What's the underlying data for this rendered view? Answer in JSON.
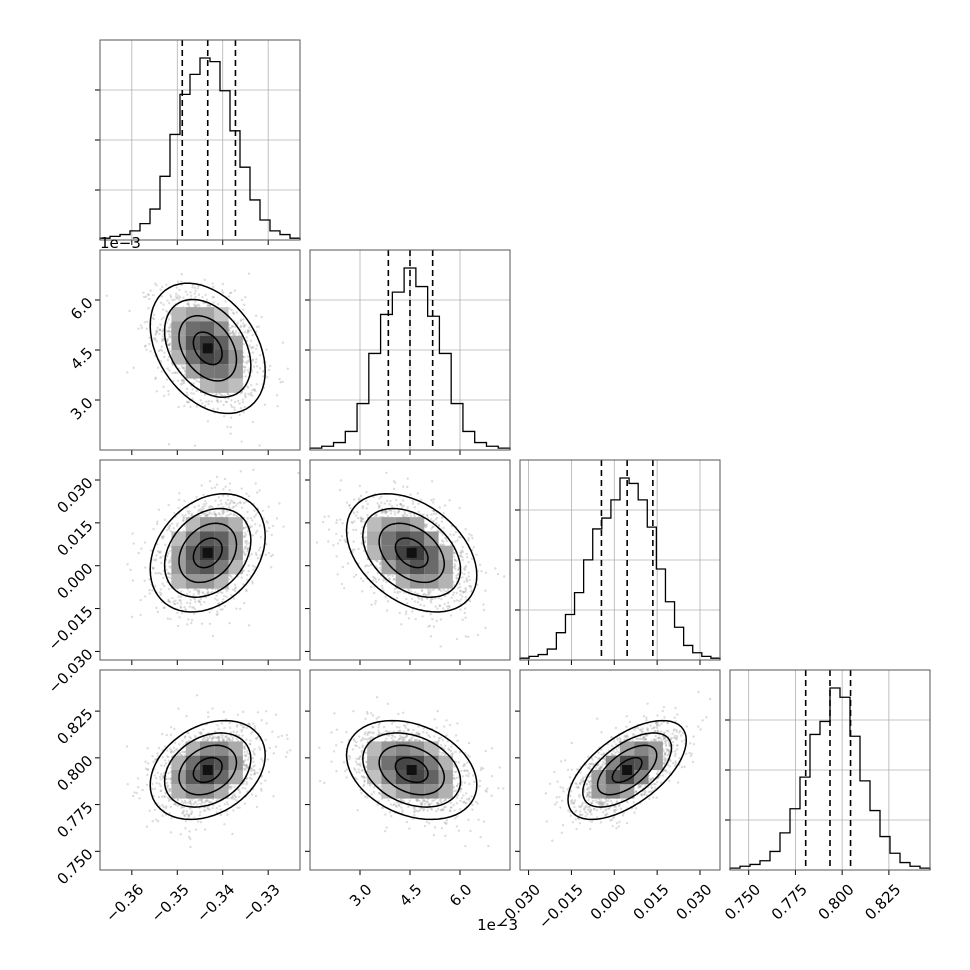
{
  "chart_data": {
    "type": "corner",
    "grid": true,
    "parameters": [
      {
        "id": "p0",
        "range": [
          -0.367,
          -0.323
        ],
        "ticks": [
          -0.36,
          -0.35,
          -0.34,
          -0.33
        ],
        "tick_labels": [
          "−0.36",
          "−0.35",
          "−0.34",
          "−0.33"
        ],
        "offset_label": "",
        "quantiles": [
          -0.3489,
          -0.3433,
          -0.3372
        ],
        "hist_counts": [
          1,
          2,
          3,
          5,
          9,
          17,
          35,
          58,
          80,
          91,
          100,
          98,
          82,
          60,
          40,
          22,
          11,
          5,
          3,
          1
        ]
      },
      {
        "id": "p1",
        "range": [
          1.5,
          7.5
        ],
        "ticks": [
          3.0,
          4.5,
          6.0
        ],
        "tick_labels": [
          "3.0",
          "4.5",
          "6.0"
        ],
        "offset_label": "1e−3",
        "quantiles": [
          3.85,
          4.5,
          5.18
        ],
        "hist_counts": [
          1,
          2,
          4,
          10,
          25,
          52,
          73,
          85,
          98,
          88,
          72,
          52,
          25,
          10,
          4,
          2,
          1
        ]
      },
      {
        "id": "p2",
        "range": [
          -0.033,
          0.037
        ],
        "ticks": [
          -0.03,
          -0.015,
          0.0,
          0.015,
          0.03
        ],
        "tick_labels": [
          "−0.030",
          "−0.015",
          "0.000",
          "0.015",
          "0.030"
        ],
        "offset_label": "",
        "quantiles": [
          -0.0045,
          0.0045,
          0.0135
        ],
        "hist_counts": [
          1,
          2,
          3,
          6,
          15,
          25,
          37,
          55,
          72,
          78,
          88,
          100,
          97,
          88,
          73,
          50,
          32,
          18,
          8,
          4,
          2,
          1
        ]
      },
      {
        "id": "p3",
        "range": [
          0.74,
          0.847
        ],
        "ticks": [
          0.75,
          0.775,
          0.8,
          0.825
        ],
        "tick_labels": [
          "0.750",
          "0.775",
          "0.800",
          "0.825"
        ],
        "offset_label": "",
        "quantiles": [
          0.7805,
          0.7935,
          0.8045
        ],
        "hist_counts": [
          1,
          2,
          3,
          5,
          10,
          20,
          33,
          50,
          73,
          80,
          98,
          93,
          72,
          48,
          32,
          18,
          9,
          4,
          2,
          1
        ]
      }
    ],
    "pairs": [
      {
        "x": 0,
        "y": 1,
        "mean": [
          -0.3433,
          4.55
        ],
        "sd": [
          0.0055,
          0.85
        ],
        "corr": -0.35
      },
      {
        "x": 0,
        "y": 2,
        "mean": [
          -0.3433,
          0.0045
        ],
        "sd": [
          0.0055,
          0.009
        ],
        "corr": 0.28
      },
      {
        "x": 1,
        "y": 2,
        "mean": [
          4.55,
          0.0045
        ],
        "sd": [
          0.85,
          0.009
        ],
        "corr": -0.38
      },
      {
        "x": 0,
        "y": 3,
        "mean": [
          -0.3433,
          0.7935
        ],
        "sd": [
          0.0055,
          0.0115
        ],
        "corr": 0.3
      },
      {
        "x": 1,
        "y": 3,
        "mean": [
          4.55,
          0.7935
        ],
        "sd": [
          0.85,
          0.0115
        ],
        "corr": -0.3
      },
      {
        "x": 2,
        "y": 3,
        "mean": [
          0.0045,
          0.7935
        ],
        "sd": [
          0.009,
          0.0115
        ],
        "corr": 0.6
      }
    ],
    "contour_levels_sigma": [
      0.5,
      1.0,
      1.5,
      2.0
    ]
  }
}
